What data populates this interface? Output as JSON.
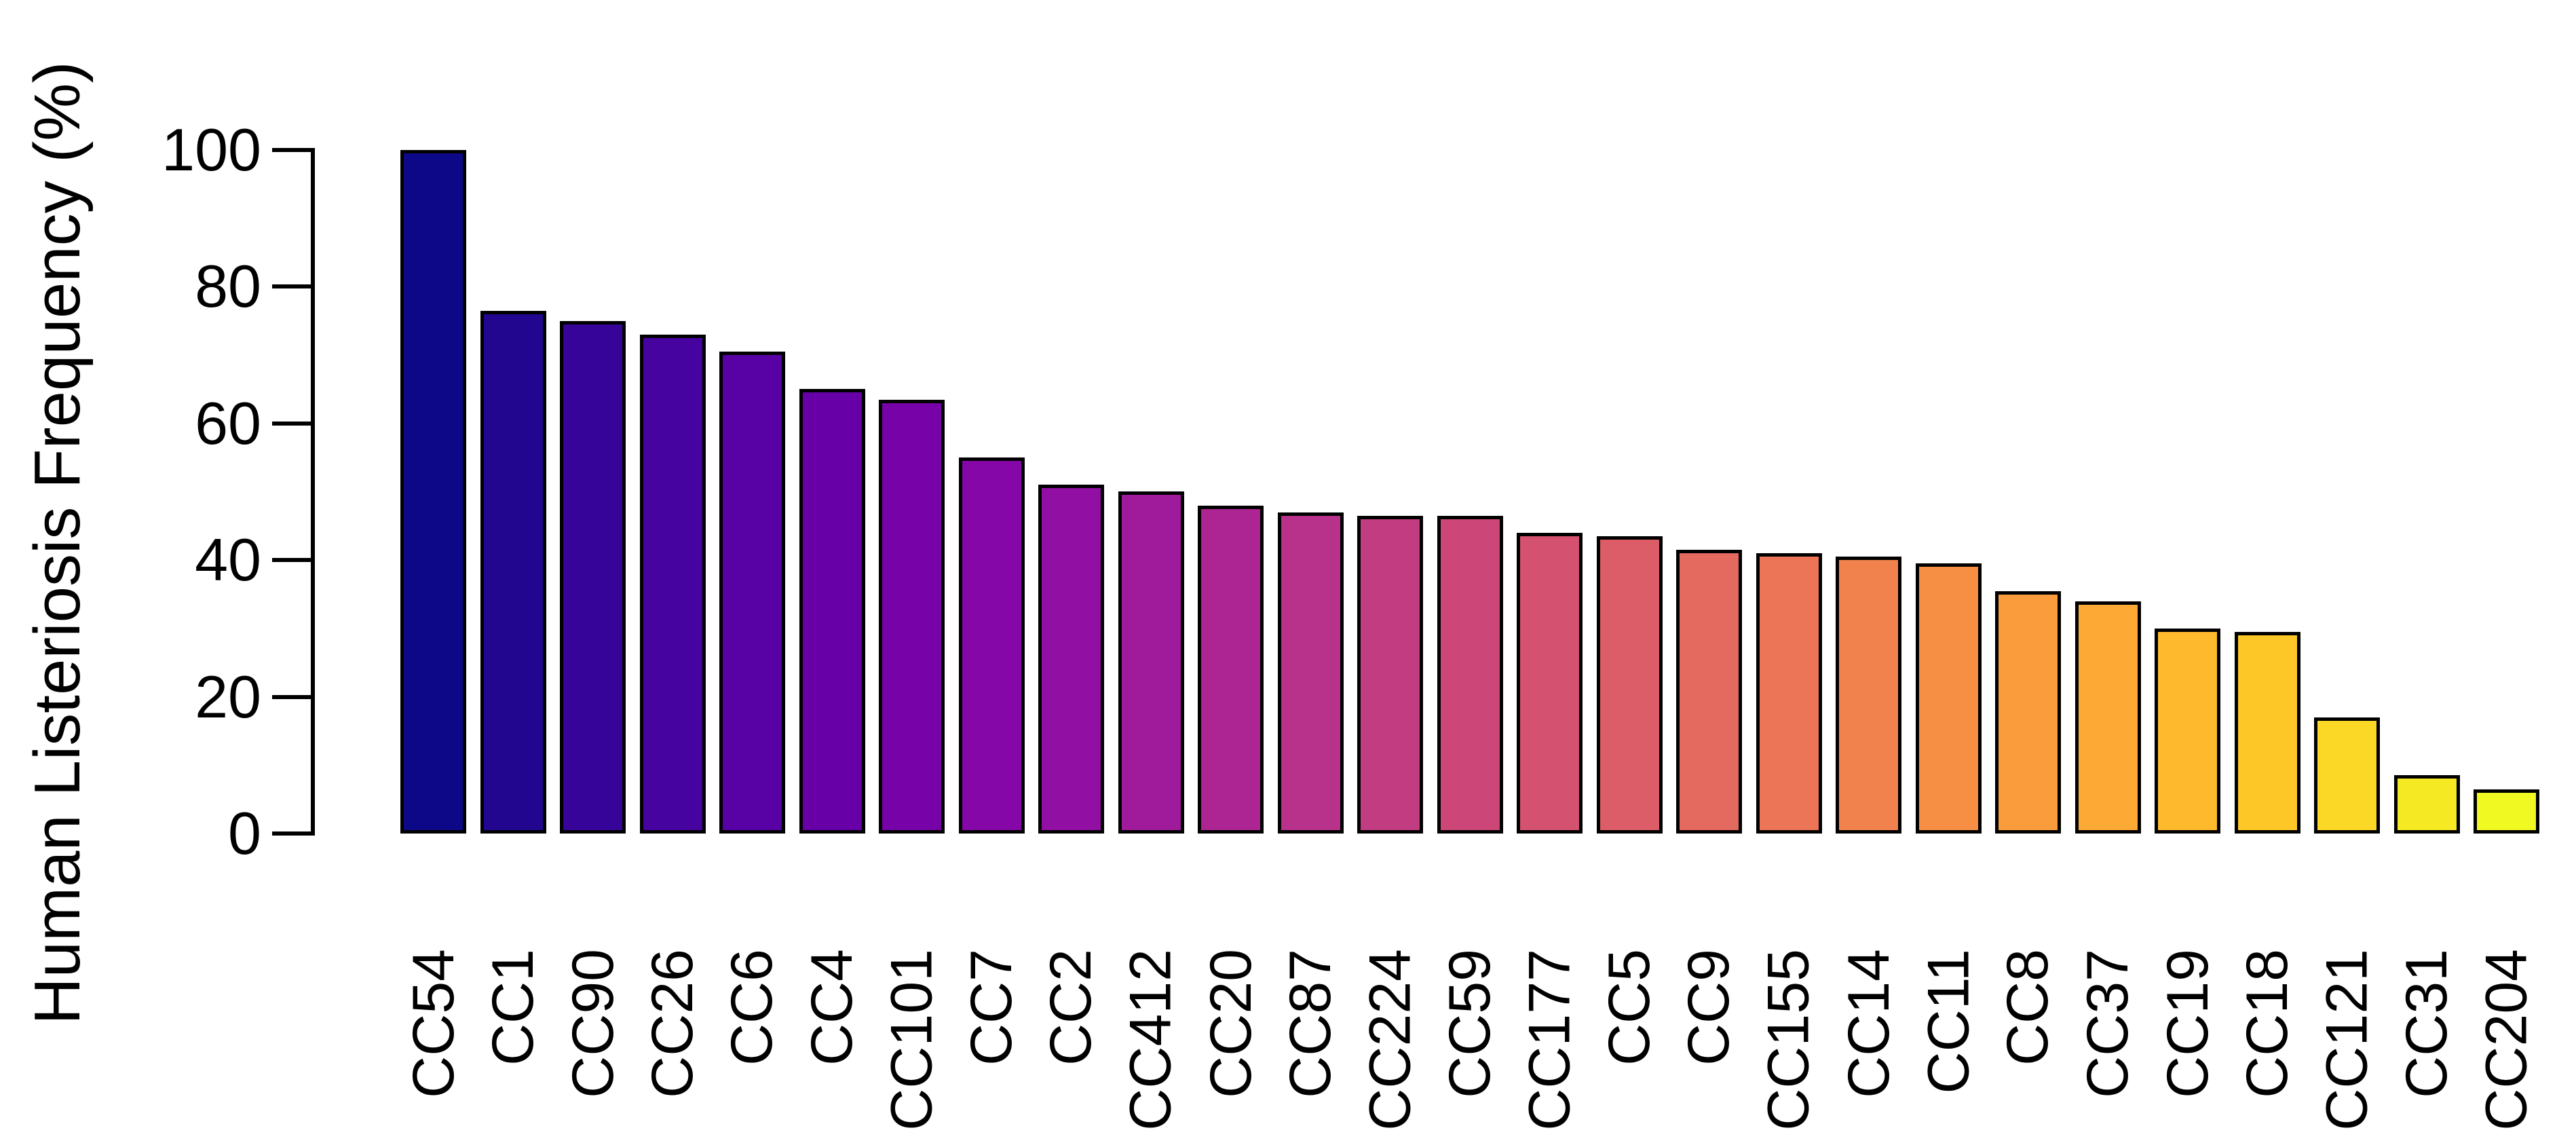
{
  "chart_data": {
    "type": "bar",
    "title": "",
    "xlabel": "",
    "ylabel": "Human Listeriosis Frequency (%)",
    "ylim": [
      0,
      100
    ],
    "yticks": [
      0,
      20,
      40,
      60,
      80,
      100
    ],
    "grid": false,
    "legend": false,
    "background_color": "#ffffff",
    "axis_color": "#000000",
    "bar_border_color": "#000000",
    "palette_name": "plasma",
    "categories": [
      "CC54",
      "CC1",
      "CC90",
      "CC26",
      "CC6",
      "CC4",
      "CC101",
      "CC7",
      "CC2",
      "CC412",
      "CC20",
      "CC87",
      "CC224",
      "CC59",
      "CC177",
      "CC5",
      "CC9",
      "CC155",
      "CC14",
      "CC11",
      "CC8",
      "CC37",
      "CC19",
      "CC18",
      "CC121",
      "CC31",
      "CC204"
    ],
    "values": [
      100,
      76.5,
      75,
      73,
      70.5,
      65,
      63.5,
      55,
      51,
      50,
      48,
      47,
      46.5,
      46.5,
      44,
      43.5,
      41.5,
      41,
      40.5,
      39.5,
      35.5,
      34,
      30,
      29.5,
      17,
      8.5,
      6.5
    ],
    "bar_colors": [
      "#0d0887",
      "#230690",
      "#360498",
      "#47039f",
      "#5801a4",
      "#6700a7",
      "#7602a8",
      "#8507a7",
      "#920fa3",
      "#a01a9c",
      "#ac2593",
      "#b8318a",
      "#c23c81",
      "#cc4778",
      "#d45270",
      "#dc5d67",
      "#e4695f",
      "#eb7556",
      "#f1824d",
      "#f68f44",
      "#fa9c3c",
      "#fca935",
      "#feb92d",
      "#fdc827",
      "#fad825",
      "#f5e924",
      "#f0f921"
    ]
  }
}
